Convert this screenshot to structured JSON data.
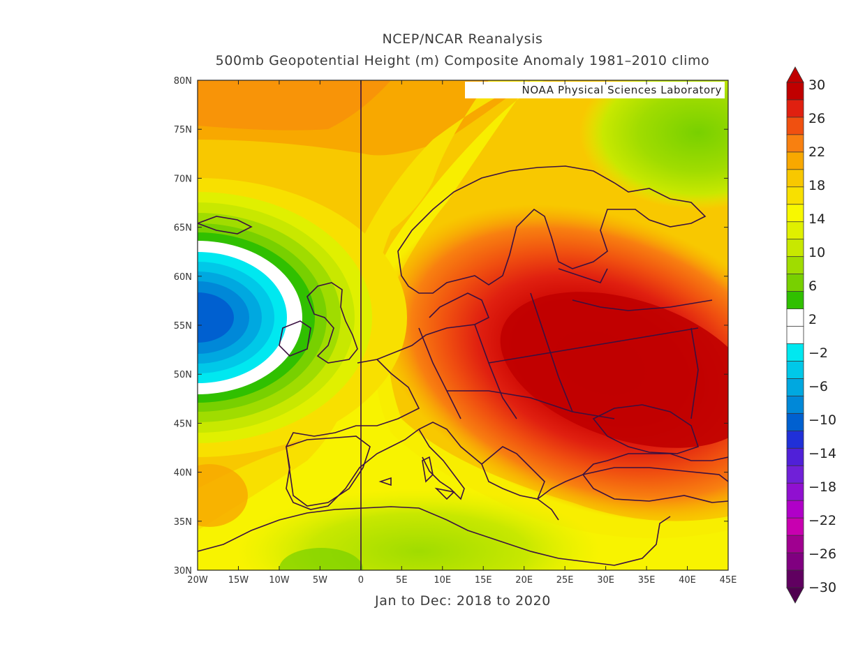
{
  "titles": {
    "line1": "NCEP/NCAR Reanalysis",
    "line2": "500mb Geopotential Height (m) Composite Anomaly 1981–2010 climo",
    "period": "Jan to Dec: 2018 to 2020"
  },
  "credit": "NOAA Physical Sciences Laboratory",
  "map": {
    "lon_range": [
      -20,
      45
    ],
    "lat_range": [
      30,
      80
    ],
    "lon_ticks": [
      "20W",
      "15W",
      "10W",
      "5W",
      "0",
      "5E",
      "10E",
      "15E",
      "20E",
      "25E",
      "30E",
      "35E",
      "40E",
      "45E"
    ],
    "lat_ticks": [
      "80N",
      "75N",
      "70N",
      "65N",
      "60N",
      "55N",
      "50N",
      "45N",
      "40N",
      "35N",
      "30N"
    ]
  },
  "colorbar": {
    "labels": [
      "30",
      "26",
      "22",
      "18",
      "14",
      "10",
      "6",
      "2",
      "−2",
      "−6",
      "−10",
      "−14",
      "−18",
      "−22",
      "−26",
      "−30"
    ],
    "colors": [
      "#c00000",
      "#e02010",
      "#f05010",
      "#f88010",
      "#f8a800",
      "#f8c800",
      "#f8e000",
      "#f8f800",
      "#e0f000",
      "#c8e800",
      "#a0dc00",
      "#78d000",
      "#30c000",
      "#ffffff",
      "#ffffff",
      "#00e8f0",
      "#00c8e8",
      "#00a8e0",
      "#0088d8",
      "#0060d0",
      "#2030d8",
      "#5020d8",
      "#7020d8",
      "#9010d0",
      "#b000c8",
      "#c800b0",
      "#a00090",
      "#800080",
      "#600060"
    ]
  }
}
